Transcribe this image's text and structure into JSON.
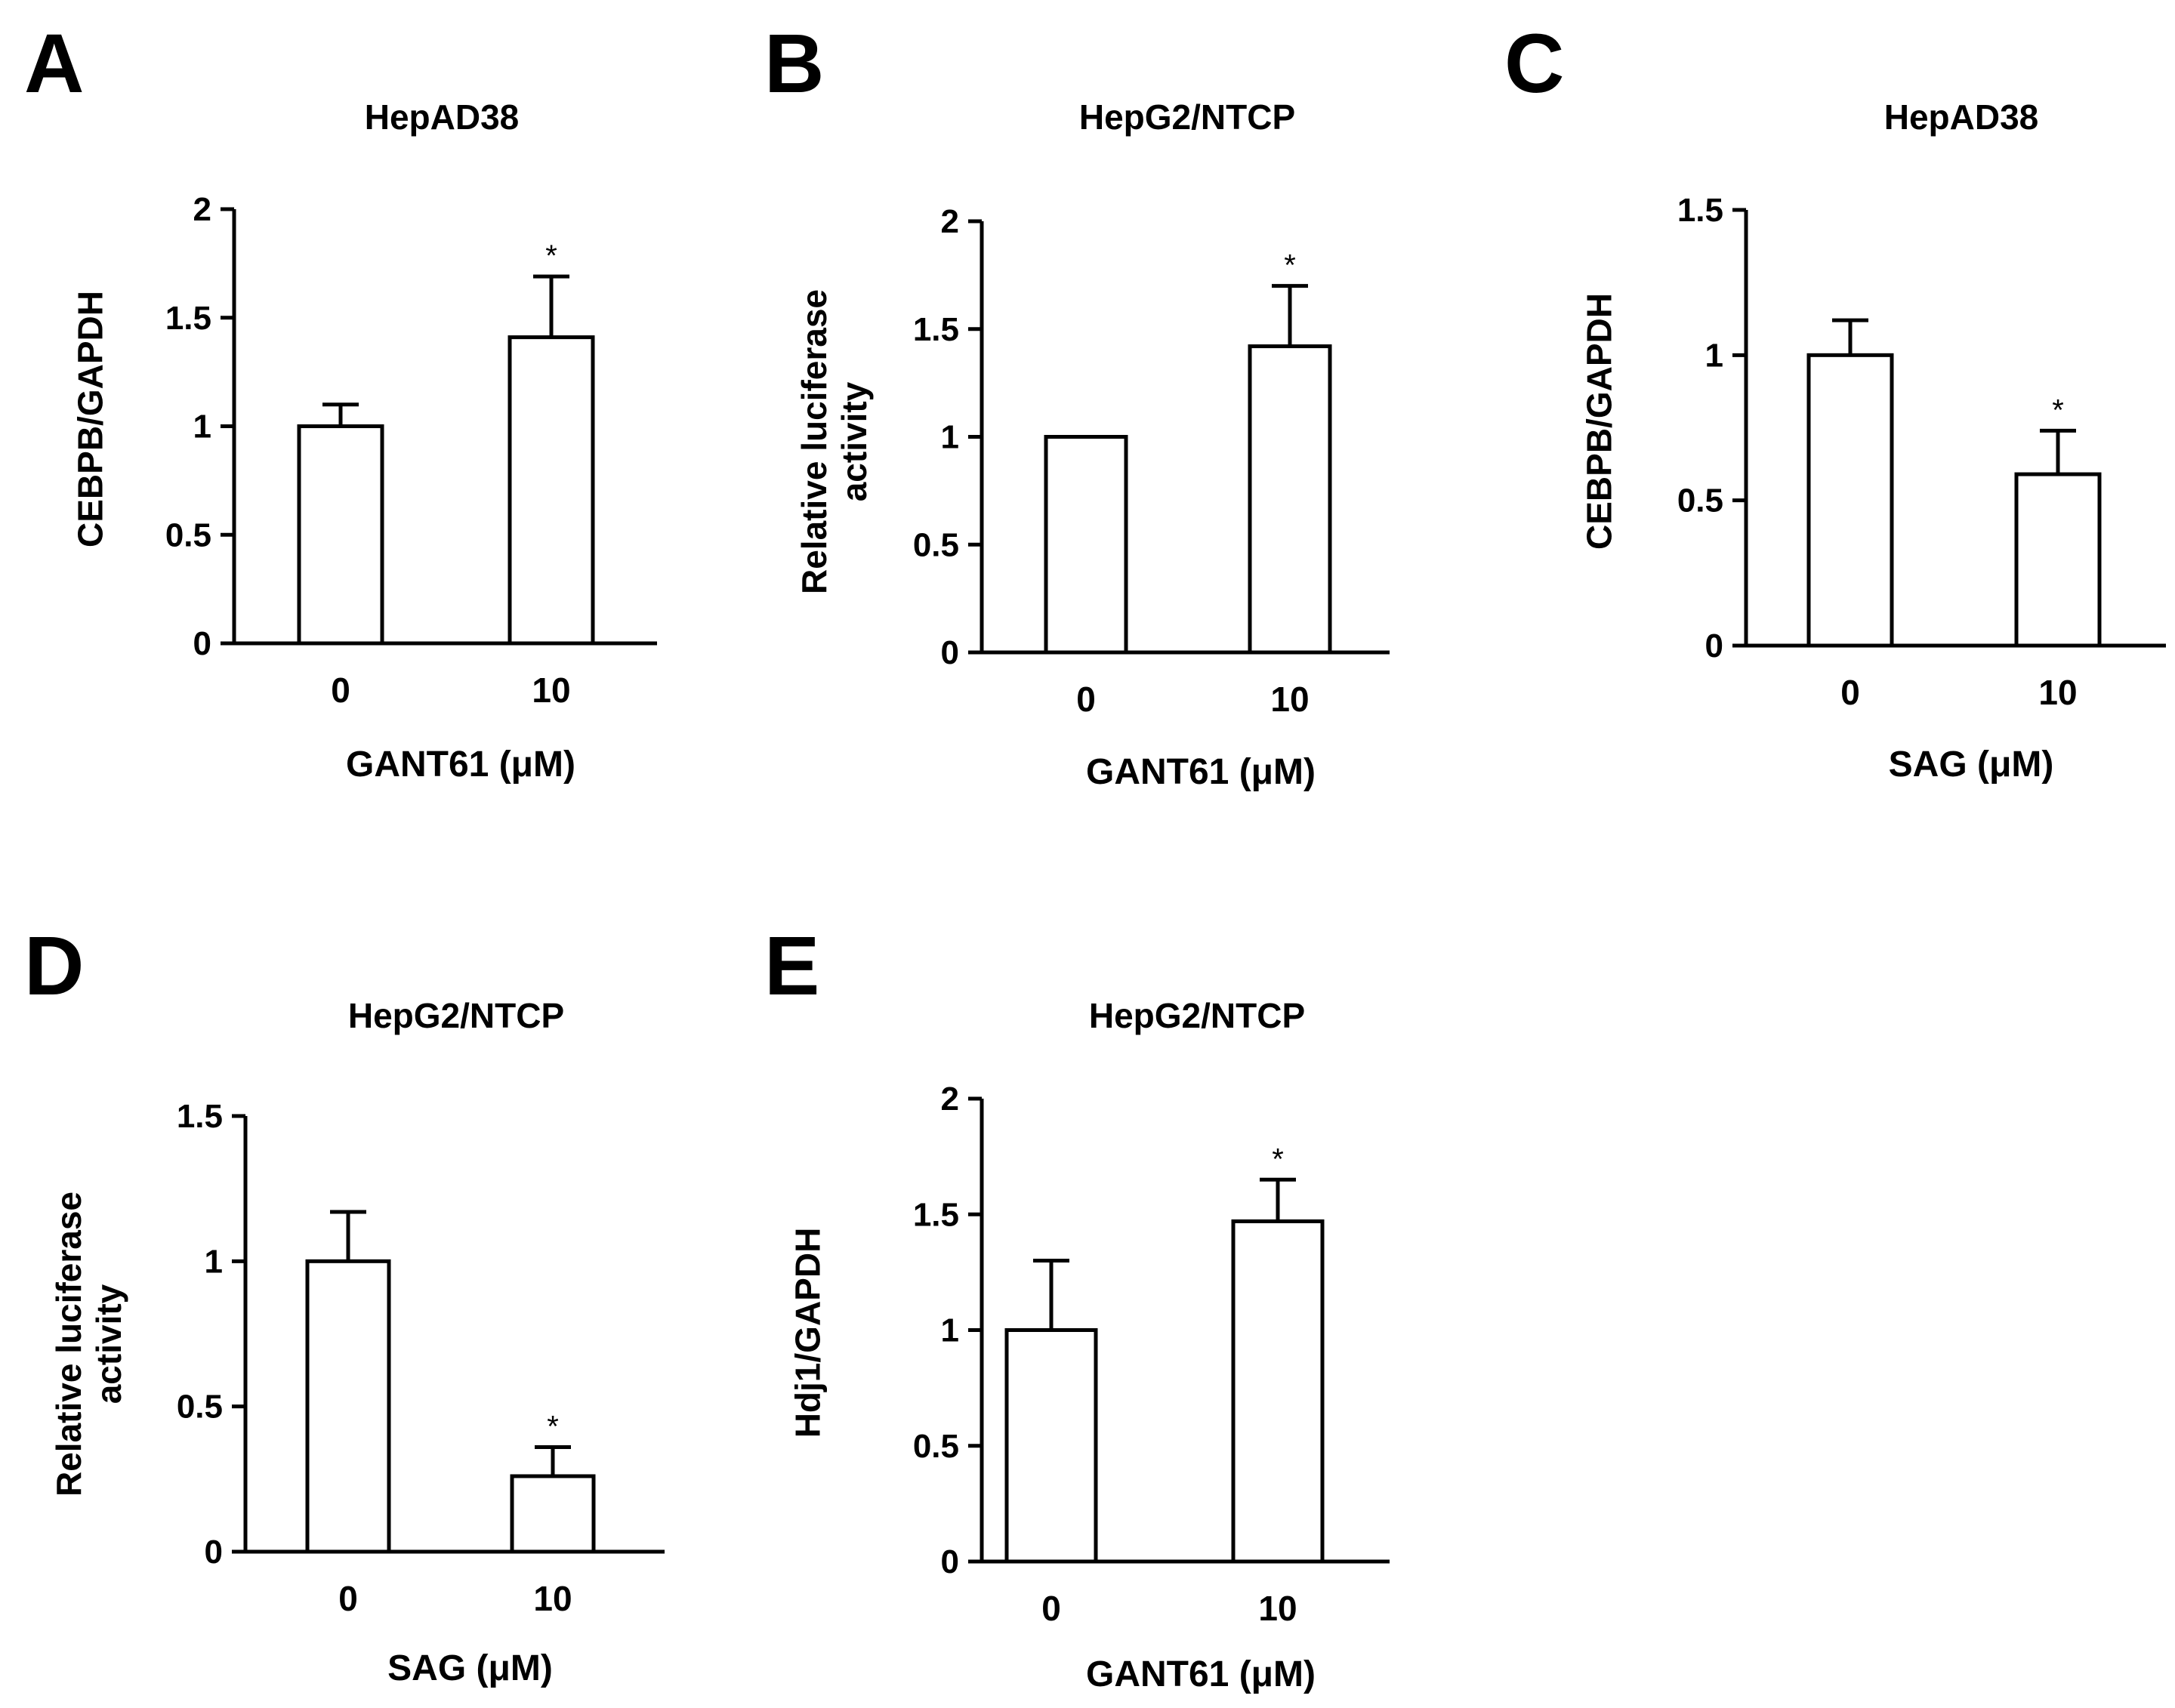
{
  "chart_data": [
    {
      "type": "bar",
      "panel": "A",
      "title": "HepAD38",
      "xlabel": "GANT61 (μM)",
      "ylabel": [
        "CEBPB/GAPDH"
      ],
      "categories": [
        "0",
        "10"
      ],
      "values": [
        1.0,
        1.41
      ],
      "errors": [
        0.1,
        0.28
      ],
      "significance": [
        "",
        "*"
      ],
      "ylim": [
        0,
        2
      ],
      "yticks": [
        0,
        0.5,
        1,
        1.5,
        2
      ],
      "ytick_labels": [
        "0",
        "0.5",
        "1",
        "1.5",
        "2"
      ],
      "grid": false
    },
    {
      "type": "bar",
      "panel": "B",
      "title": "HepG2/NTCP",
      "xlabel": "GANT61 (μM)",
      "ylabel": [
        "Relative luciferase",
        "activity"
      ],
      "categories": [
        "0",
        "10"
      ],
      "values": [
        1.0,
        1.42
      ],
      "errors": [
        0.0,
        0.28
      ],
      "significance": [
        "",
        "*"
      ],
      "ylim": [
        0,
        2
      ],
      "yticks": [
        0,
        0.5,
        1,
        1.5,
        2
      ],
      "ytick_labels": [
        "0",
        "0.5",
        "1",
        "1.5",
        "2"
      ],
      "grid": false
    },
    {
      "type": "bar",
      "panel": "C",
      "title": "HepAD38",
      "xlabel": "SAG (μM)",
      "ylabel": [
        "CEBPB/GAPDH"
      ],
      "categories": [
        "0",
        "10"
      ],
      "values": [
        1.0,
        0.59
      ],
      "errors": [
        0.12,
        0.15
      ],
      "significance": [
        "",
        "*"
      ],
      "ylim": [
        0,
        1.5
      ],
      "yticks": [
        0,
        0.5,
        1,
        1.5
      ],
      "ytick_labels": [
        "0",
        "0.5",
        "1",
        "1.5"
      ],
      "grid": false
    },
    {
      "type": "bar",
      "panel": "D",
      "title": "HepG2/NTCP",
      "xlabel": "SAG (μM)",
      "ylabel": [
        "Relative luciferase",
        "activity"
      ],
      "categories": [
        "0",
        "10"
      ],
      "values": [
        1.0,
        0.26
      ],
      "errors": [
        0.17,
        0.1
      ],
      "significance": [
        "",
        "*"
      ],
      "ylim": [
        0,
        1.5
      ],
      "yticks": [
        0,
        0.5,
        1,
        1.5
      ],
      "ytick_labels": [
        "0",
        "0.5",
        "1",
        "1.5"
      ],
      "grid": false
    },
    {
      "type": "bar",
      "panel": "E",
      "title": "HepG2/NTCP",
      "xlabel": "GANT61 (μM)",
      "ylabel": [
        "Hdj1/GAPDH"
      ],
      "categories": [
        "0",
        "10"
      ],
      "values": [
        1.0,
        1.47
      ],
      "errors": [
        0.3,
        0.18
      ],
      "significance": [
        "",
        "*"
      ],
      "ylim": [
        0,
        2
      ],
      "yticks": [
        0,
        0.5,
        1,
        1.5,
        2
      ],
      "ytick_labels": [
        "0",
        "0.5",
        "1",
        "1.5",
        "2"
      ],
      "grid": false
    }
  ]
}
